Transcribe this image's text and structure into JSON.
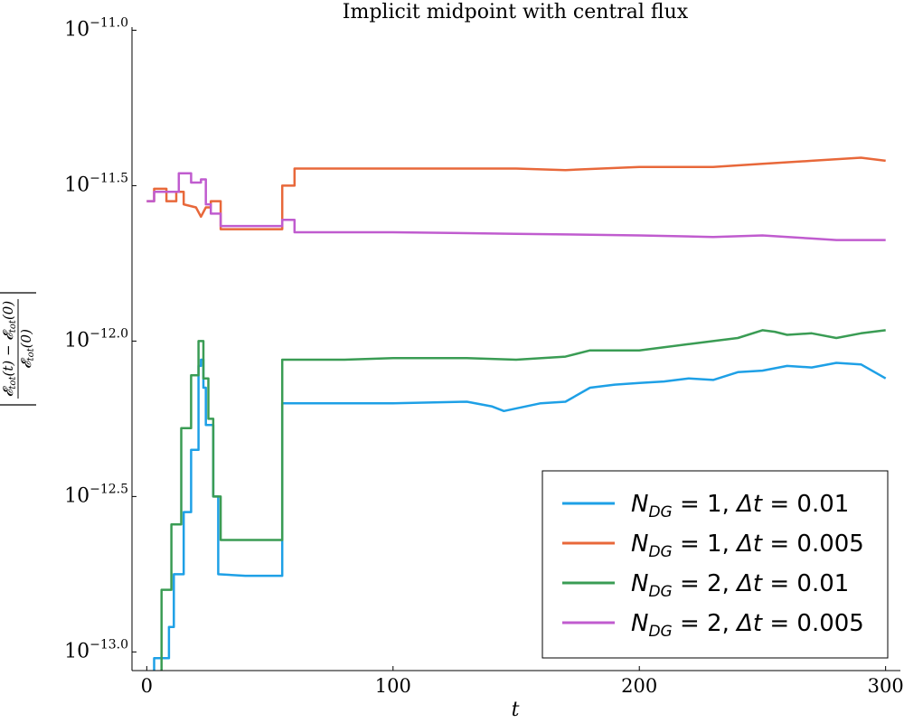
{
  "chart_data": {
    "type": "line",
    "title": "Implicit midpoint with central flux",
    "xlabel": "t",
    "ylabel": "|(𝓔tot(t) − 𝓔tot(0)) / 𝓔tot(0)|",
    "yscale": "log10",
    "xlim": [
      -6,
      306
    ],
    "ylim": [
      -13.06,
      -10.99
    ],
    "xticks": [
      0,
      100,
      200,
      300
    ],
    "xtick_labels": [
      "0",
      "100",
      "200",
      "300"
    ],
    "yticks": [
      -13.0,
      -12.5,
      -12.0,
      -11.5,
      -11.0
    ],
    "ytick_exponents": [
      "−13.0",
      "−12.5",
      "−12.0",
      "−11.5",
      "−11.0"
    ],
    "ytick_base": "10",
    "grid": false,
    "legend_position": "bottom-right",
    "series": [
      {
        "name": "N_DG = 1, Δt = 0.01",
        "legend_parts": {
          "var": "N",
          "sub": "DG",
          "eq1": " = 1, ",
          "dt": "Δt",
          "eq2": " = 0.01"
        },
        "color": "#1ea0e6",
        "points": [
          [
            3,
            -13.06
          ],
          [
            3,
            -13.02
          ],
          [
            9,
            -13.02
          ],
          [
            9,
            -12.92
          ],
          [
            11,
            -12.92
          ],
          [
            11,
            -12.75
          ],
          [
            15,
            -12.75
          ],
          [
            15,
            -12.55
          ],
          [
            18,
            -12.55
          ],
          [
            18,
            -12.35
          ],
          [
            21,
            -12.35
          ],
          [
            21,
            -12.08
          ],
          [
            22,
            -12.08
          ],
          [
            22,
            -12.06
          ],
          [
            23,
            -12.06
          ],
          [
            23,
            -12.15
          ],
          [
            24,
            -12.15
          ],
          [
            24,
            -12.27
          ],
          [
            27,
            -12.27
          ],
          [
            27,
            -12.5
          ],
          [
            29,
            -12.5
          ],
          [
            29,
            -12.75
          ],
          [
            40,
            -12.755
          ],
          [
            55,
            -12.755
          ],
          [
            55,
            -12.2
          ],
          [
            80,
            -12.2
          ],
          [
            100,
            -12.2
          ],
          [
            130,
            -12.195
          ],
          [
            140,
            -12.21
          ],
          [
            145,
            -12.225
          ],
          [
            160,
            -12.2
          ],
          [
            170,
            -12.195
          ],
          [
            180,
            -12.15
          ],
          [
            190,
            -12.14
          ],
          [
            200,
            -12.135
          ],
          [
            210,
            -12.13
          ],
          [
            220,
            -12.12
          ],
          [
            230,
            -12.125
          ],
          [
            240,
            -12.1
          ],
          [
            250,
            -12.095
          ],
          [
            260,
            -12.08
          ],
          [
            270,
            -12.085
          ],
          [
            280,
            -12.07
          ],
          [
            290,
            -12.075
          ],
          [
            300,
            -12.12
          ]
        ]
      },
      {
        "name": "N_DG = 1, Δt = 0.005",
        "legend_parts": {
          "var": "N",
          "sub": "DG",
          "eq1": " = 1, ",
          "dt": "Δt",
          "eq2": " = 0.005"
        },
        "color": "#e8683a",
        "points": [
          [
            0,
            -11.55
          ],
          [
            3,
            -11.55
          ],
          [
            3,
            -11.51
          ],
          [
            8,
            -11.51
          ],
          [
            8,
            -11.55
          ],
          [
            12,
            -11.55
          ],
          [
            12,
            -11.52
          ],
          [
            15,
            -11.52
          ],
          [
            15,
            -11.56
          ],
          [
            20,
            -11.57
          ],
          [
            22,
            -11.6
          ],
          [
            24,
            -11.57
          ],
          [
            26,
            -11.57
          ],
          [
            26,
            -11.55
          ],
          [
            28,
            -11.55
          ],
          [
            30,
            -11.55
          ],
          [
            30,
            -11.64
          ],
          [
            40,
            -11.64
          ],
          [
            55,
            -11.64
          ],
          [
            55,
            -11.5
          ],
          [
            60,
            -11.5
          ],
          [
            60,
            -11.445
          ],
          [
            100,
            -11.445
          ],
          [
            150,
            -11.445
          ],
          [
            170,
            -11.45
          ],
          [
            200,
            -11.44
          ],
          [
            230,
            -11.44
          ],
          [
            250,
            -11.43
          ],
          [
            270,
            -11.42
          ],
          [
            290,
            -11.41
          ],
          [
            300,
            -11.42
          ]
        ]
      },
      {
        "name": "N_DG = 2, Δt = 0.01",
        "legend_parts": {
          "var": "N",
          "sub": "DG",
          "eq1": " = 2, ",
          "dt": "Δt",
          "eq2": " = 0.01"
        },
        "color": "#3a9c54",
        "points": [
          [
            6,
            -13.06
          ],
          [
            6,
            -12.8
          ],
          [
            10,
            -12.8
          ],
          [
            10,
            -12.59
          ],
          [
            14,
            -12.59
          ],
          [
            14,
            -12.28
          ],
          [
            18,
            -12.28
          ],
          [
            18,
            -12.11
          ],
          [
            21,
            -12.11
          ],
          [
            21,
            -12.0
          ],
          [
            23,
            -12.0
          ],
          [
            23,
            -12.12
          ],
          [
            25,
            -12.12
          ],
          [
            25,
            -12.25
          ],
          [
            27,
            -12.25
          ],
          [
            27,
            -12.5
          ],
          [
            30,
            -12.5
          ],
          [
            30,
            -12.64
          ],
          [
            55,
            -12.64
          ],
          [
            55,
            -12.06
          ],
          [
            80,
            -12.06
          ],
          [
            100,
            -12.055
          ],
          [
            130,
            -12.055
          ],
          [
            150,
            -12.06
          ],
          [
            170,
            -12.05
          ],
          [
            180,
            -12.03
          ],
          [
            200,
            -12.03
          ],
          [
            210,
            -12.02
          ],
          [
            220,
            -12.01
          ],
          [
            230,
            -12.0
          ],
          [
            240,
            -11.99
          ],
          [
            250,
            -11.965
          ],
          [
            255,
            -11.97
          ],
          [
            260,
            -11.98
          ],
          [
            270,
            -11.975
          ],
          [
            280,
            -11.99
          ],
          [
            290,
            -11.975
          ],
          [
            300,
            -11.965
          ]
        ]
      },
      {
        "name": "N_DG = 2, Δt = 0.005",
        "legend_parts": {
          "var": "N",
          "sub": "DG",
          "eq1": " = 2, ",
          "dt": "Δt",
          "eq2": " = 0.005"
        },
        "color": "#c05ccf",
        "points": [
          [
            0,
            -11.55
          ],
          [
            3,
            -11.55
          ],
          [
            3,
            -11.52
          ],
          [
            13,
            -11.52
          ],
          [
            13,
            -11.46
          ],
          [
            18,
            -11.46
          ],
          [
            18,
            -11.49
          ],
          [
            22,
            -11.49
          ],
          [
            22,
            -11.48
          ],
          [
            24,
            -11.48
          ],
          [
            24,
            -11.56
          ],
          [
            26,
            -11.56
          ],
          [
            26,
            -11.59
          ],
          [
            30,
            -11.59
          ],
          [
            30,
            -11.63
          ],
          [
            40,
            -11.63
          ],
          [
            55,
            -11.63
          ],
          [
            55,
            -11.61
          ],
          [
            60,
            -11.61
          ],
          [
            60,
            -11.65
          ],
          [
            100,
            -11.65
          ],
          [
            150,
            -11.655
          ],
          [
            200,
            -11.66
          ],
          [
            230,
            -11.665
          ],
          [
            250,
            -11.66
          ],
          [
            270,
            -11.67
          ],
          [
            280,
            -11.675
          ],
          [
            300,
            -11.675
          ]
        ]
      }
    ]
  }
}
